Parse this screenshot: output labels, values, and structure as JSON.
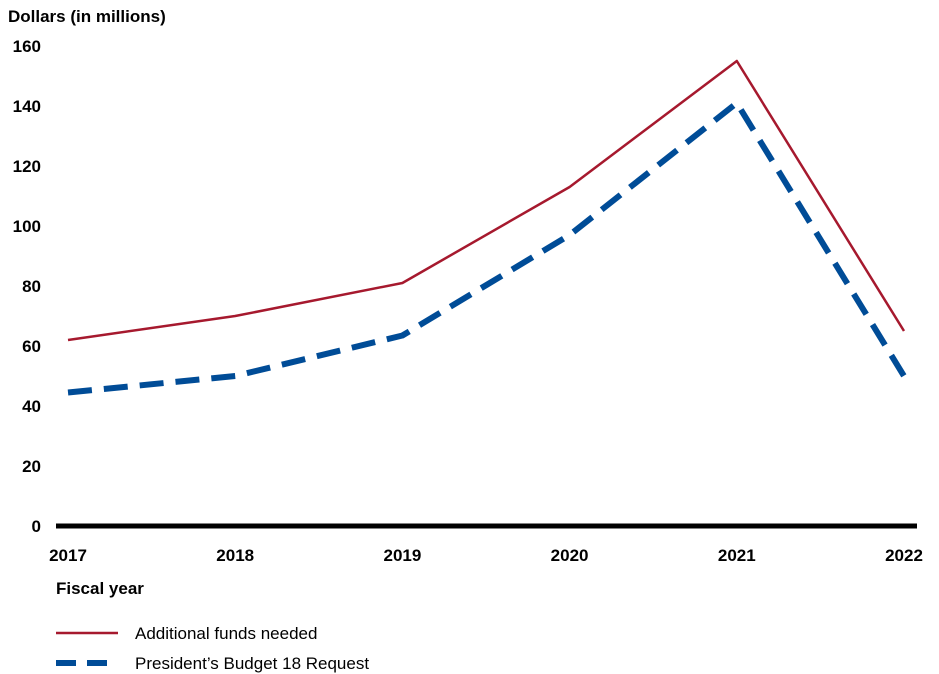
{
  "chart_data": {
    "type": "line",
    "ylabel": "Dollars (in millions)",
    "xlabel": "Fiscal year",
    "categories": [
      "2017",
      "2018",
      "2019",
      "2020",
      "2021",
      "2022"
    ],
    "yticks": [
      "0",
      "20",
      "40",
      "60",
      "80",
      "100",
      "120",
      "140",
      "160"
    ],
    "ylim": [
      0,
      160
    ],
    "grid": false,
    "legend_position": "bottom-left",
    "series": [
      {
        "name": "Additional funds needed",
        "values": [
          62,
          70,
          81,
          113,
          155,
          65
        ],
        "color": "#A6192E",
        "style": "solid"
      },
      {
        "name": "President’s Budget 18 Request",
        "values": [
          44.5,
          50,
          63.5,
          97,
          141,
          50
        ],
        "color": "#004C97",
        "style": "dashed"
      }
    ]
  }
}
